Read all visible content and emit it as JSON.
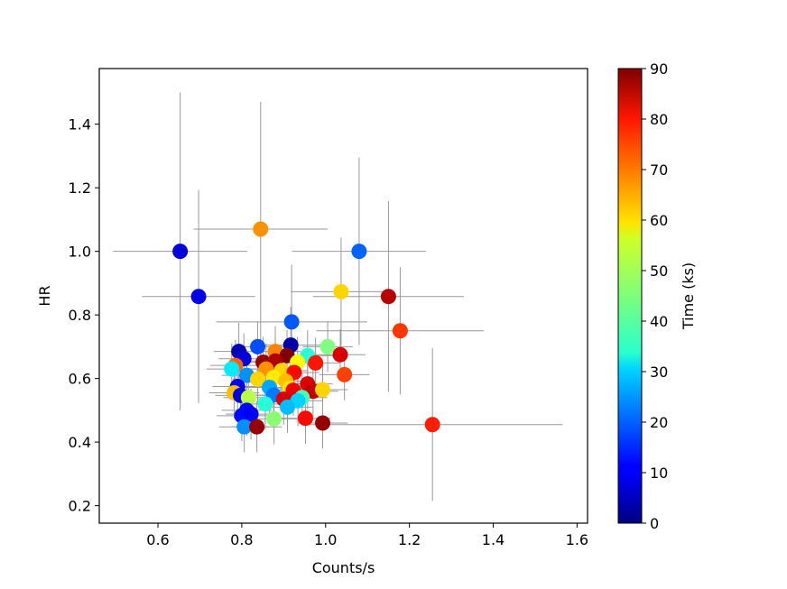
{
  "chart_data": {
    "type": "scatter",
    "title": "",
    "xlabel": "Counts/s",
    "ylabel": "HR",
    "xlim": [
      0.46,
      1.625
    ],
    "ylim": [
      0.145,
      1.575
    ],
    "xticks": [
      0.6,
      0.8,
      1.0,
      1.2,
      1.4,
      1.6
    ],
    "xtick_labels": [
      "0.6",
      "0.8",
      "1.0",
      "1.2",
      "1.4",
      "1.6"
    ],
    "yticks": [
      0.2,
      0.4,
      0.6,
      0.8,
      1.0,
      1.2,
      1.4
    ],
    "ytick_labels": [
      "0.2",
      "0.4",
      "0.6",
      "0.8",
      "1.0",
      "1.2",
      "1.4"
    ],
    "grid": false,
    "colorbar": {
      "label": "Time (ks)",
      "colormap": "jet",
      "range": [
        0,
        90
      ],
      "ticks": [
        0,
        10,
        20,
        30,
        40,
        50,
        60,
        70,
        80,
        90
      ],
      "tick_labels": [
        "0",
        "10",
        "20",
        "30",
        "40",
        "50",
        "60",
        "70",
        "80",
        "90"
      ]
    },
    "errorbar_color": "#999999",
    "points": [
      {
        "x": 0.653,
        "y": 1.0,
        "t": 8,
        "xerr": 0.16,
        "yerr": 0.5
      },
      {
        "x": 0.697,
        "y": 0.858,
        "t": 9,
        "xerr": 0.135,
        "yerr": 0.335
      },
      {
        "x": 0.845,
        "y": 1.07,
        "t": 66,
        "xerr": 0.16,
        "yerr": 0.4
      },
      {
        "x": 1.08,
        "y": 1.0,
        "t": 20,
        "xerr": 0.16,
        "yerr": 0.295
      },
      {
        "x": 1.037,
        "y": 0.873,
        "t": 60,
        "xerr": 0.12,
        "yerr": 0.17
      },
      {
        "x": 1.15,
        "y": 0.858,
        "t": 85,
        "xerr": 0.18,
        "yerr": 0.3
      },
      {
        "x": 0.919,
        "y": 0.778,
        "t": 19,
        "xerr": 0.18,
        "yerr": 0.18
      },
      {
        "x": 1.178,
        "y": 0.75,
        "t": 74,
        "xerr": 0.2,
        "yerr": 0.2
      },
      {
        "x": 0.917,
        "y": 0.705,
        "t": 4,
        "xerr": 0.09,
        "yerr": 0.12
      },
      {
        "x": 0.838,
        "y": 0.7,
        "t": 18,
        "xerr": 0.06,
        "yerr": 0.08
      },
      {
        "x": 0.793,
        "y": 0.685,
        "t": 5,
        "xerr": 0.06,
        "yerr": 0.09
      },
      {
        "x": 0.88,
        "y": 0.685,
        "t": 67,
        "xerr": 0.06,
        "yerr": 0.08
      },
      {
        "x": 1.005,
        "y": 0.7,
        "t": 45,
        "xerr": 0.06,
        "yerr": 0.08
      },
      {
        "x": 0.908,
        "y": 0.672,
        "t": 90,
        "xerr": 0.06,
        "yerr": 0.08
      },
      {
        "x": 0.957,
        "y": 0.672,
        "t": 37,
        "xerr": 0.06,
        "yerr": 0.08
      },
      {
        "x": 1.035,
        "y": 0.675,
        "t": 82,
        "xerr": 0.06,
        "yerr": 0.08
      },
      {
        "x": 0.805,
        "y": 0.662,
        "t": 8,
        "xerr": 0.06,
        "yerr": 0.08
      },
      {
        "x": 0.851,
        "y": 0.651,
        "t": 88,
        "xerr": 0.06,
        "yerr": 0.08
      },
      {
        "x": 0.88,
        "y": 0.655,
        "t": 86,
        "xerr": 0.06,
        "yerr": 0.08
      },
      {
        "x": 0.933,
        "y": 0.651,
        "t": 56,
        "xerr": 0.06,
        "yerr": 0.08
      },
      {
        "x": 0.976,
        "y": 0.649,
        "t": 77,
        "xerr": 0.06,
        "yerr": 0.08
      },
      {
        "x": 0.785,
        "y": 0.641,
        "t": 70,
        "xerr": 0.06,
        "yerr": 0.08
      },
      {
        "x": 0.776,
        "y": 0.63,
        "t": 32,
        "xerr": 0.06,
        "yerr": 0.08
      },
      {
        "x": 0.858,
        "y": 0.63,
        "t": 66,
        "xerr": 0.06,
        "yerr": 0.08
      },
      {
        "x": 0.895,
        "y": 0.625,
        "t": 60,
        "xerr": 0.06,
        "yerr": 0.08
      },
      {
        "x": 0.925,
        "y": 0.619,
        "t": 78,
        "xerr": 0.06,
        "yerr": 0.08
      },
      {
        "x": 1.045,
        "y": 0.612,
        "t": 73,
        "xerr": 0.06,
        "yerr": 0.08
      },
      {
        "x": 0.812,
        "y": 0.61,
        "t": 24,
        "xerr": 0.06,
        "yerr": 0.08
      },
      {
        "x": 0.876,
        "y": 0.603,
        "t": 58,
        "xerr": 0.06,
        "yerr": 0.08
      },
      {
        "x": 0.838,
        "y": 0.598,
        "t": 60,
        "xerr": 0.06,
        "yerr": 0.08
      },
      {
        "x": 0.905,
        "y": 0.592,
        "t": 62,
        "xerr": 0.06,
        "yerr": 0.08
      },
      {
        "x": 0.957,
        "y": 0.583,
        "t": 82,
        "xerr": 0.06,
        "yerr": 0.08
      },
      {
        "x": 0.79,
        "y": 0.575,
        "t": 10,
        "xerr": 0.06,
        "yerr": 0.08
      },
      {
        "x": 0.866,
        "y": 0.572,
        "t": 26,
        "xerr": 0.06,
        "yerr": 0.08
      },
      {
        "x": 0.915,
        "y": 0.568,
        "t": 58,
        "xerr": 0.06,
        "yerr": 0.08
      },
      {
        "x": 0.923,
        "y": 0.563,
        "t": 80,
        "xerr": 0.06,
        "yerr": 0.08
      },
      {
        "x": 0.97,
        "y": 0.56,
        "t": 84,
        "xerr": 0.06,
        "yerr": 0.08
      },
      {
        "x": 0.993,
        "y": 0.565,
        "t": 60,
        "xerr": 0.06,
        "yerr": 0.08
      },
      {
        "x": 0.782,
        "y": 0.555,
        "t": 62,
        "xerr": 0.06,
        "yerr": 0.08
      },
      {
        "x": 0.797,
        "y": 0.547,
        "t": 8,
        "xerr": 0.06,
        "yerr": 0.08
      },
      {
        "x": 0.816,
        "y": 0.54,
        "t": 50,
        "xerr": 0.06,
        "yerr": 0.08
      },
      {
        "x": 0.876,
        "y": 0.548,
        "t": 22,
        "xerr": 0.06,
        "yerr": 0.08
      },
      {
        "x": 0.944,
        "y": 0.54,
        "t": 40,
        "xerr": 0.06,
        "yerr": 0.08
      },
      {
        "x": 0.9,
        "y": 0.535,
        "t": 82,
        "xerr": 0.06,
        "yerr": 0.08
      },
      {
        "x": 0.934,
        "y": 0.53,
        "t": 30,
        "xerr": 0.06,
        "yerr": 0.08
      },
      {
        "x": 0.856,
        "y": 0.52,
        "t": 37,
        "xerr": 0.06,
        "yerr": 0.08
      },
      {
        "x": 0.909,
        "y": 0.51,
        "t": 28,
        "xerr": 0.06,
        "yerr": 0.08
      },
      {
        "x": 0.812,
        "y": 0.5,
        "t": 12,
        "xerr": 0.06,
        "yerr": 0.08
      },
      {
        "x": 0.8,
        "y": 0.483,
        "t": 12,
        "xerr": 0.06,
        "yerr": 0.08
      },
      {
        "x": 0.822,
        "y": 0.488,
        "t": 11,
        "xerr": 0.06,
        "yerr": 0.08
      },
      {
        "x": 0.877,
        "y": 0.473,
        "t": 46,
        "xerr": 0.06,
        "yerr": 0.08
      },
      {
        "x": 0.952,
        "y": 0.475,
        "t": 78,
        "xerr": 0.06,
        "yerr": 0.08
      },
      {
        "x": 0.993,
        "y": 0.46,
        "t": 88,
        "xerr": 0.06,
        "yerr": 0.08
      },
      {
        "x": 0.806,
        "y": 0.448,
        "t": 24,
        "xerr": 0.06,
        "yerr": 0.08
      },
      {
        "x": 0.836,
        "y": 0.448,
        "t": 88,
        "xerr": 0.06,
        "yerr": 0.08
      },
      {
        "x": 1.255,
        "y": 0.455,
        "t": 76,
        "xerr": 0.31,
        "yerr": 0.24
      }
    ]
  }
}
